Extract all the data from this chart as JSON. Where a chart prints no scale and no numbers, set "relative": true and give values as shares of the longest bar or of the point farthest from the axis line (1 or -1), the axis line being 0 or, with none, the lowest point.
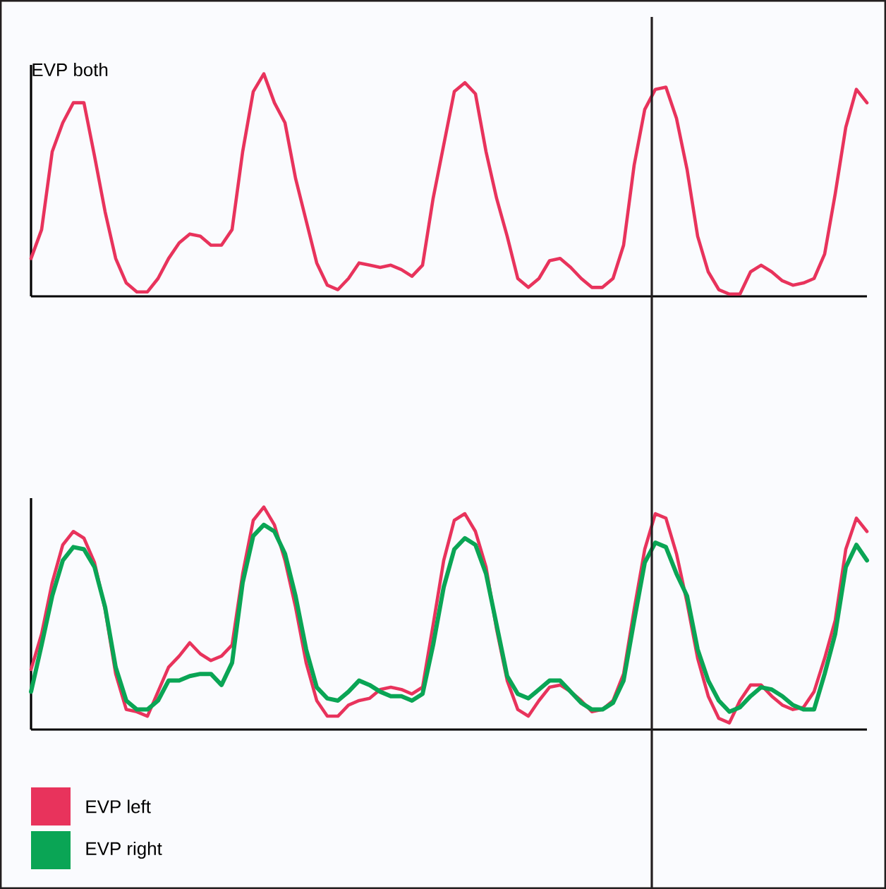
{
  "chart_data": [
    {
      "type": "line",
      "title": "EVP both",
      "relative": true,
      "categories": [
        null,
        null,
        null,
        null,
        null,
        null,
        null,
        null,
        null,
        null,
        null,
        null,
        null,
        null,
        null,
        null,
        null,
        null,
        null,
        null,
        null,
        null,
        null,
        null,
        null,
        null,
        null,
        null,
        null,
        null,
        null,
        null,
        null,
        null,
        null,
        null,
        null,
        null,
        null,
        null,
        null,
        null,
        null,
        null,
        null,
        null,
        null,
        null,
        null,
        null,
        null,
        null,
        null,
        null,
        null,
        null,
        null,
        null,
        null,
        null,
        null,
        null,
        null,
        null,
        null,
        null,
        null,
        null,
        null,
        null,
        null,
        null,
        null,
        null,
        null,
        null,
        null,
        null,
        null,
        null
      ],
      "series": [
        {
          "color": "#e8335c",
          "values": [
            0.17,
            0.3,
            0.65,
            0.78,
            0.87,
            0.87,
            0.63,
            0.38,
            0.17,
            0.06,
            0.02,
            0.02,
            0.08,
            0.17,
            0.24,
            0.28,
            0.27,
            0.23,
            0.23,
            0.3,
            0.65,
            0.92,
            1.0,
            0.87,
            0.78,
            0.53,
            0.34,
            0.15,
            0.05,
            0.03,
            0.08,
            0.15,
            0.14,
            0.13,
            0.14,
            0.12,
            0.09,
            0.14,
            0.44,
            0.68,
            0.92,
            0.96,
            0.91,
            0.65,
            0.44,
            0.27,
            0.08,
            0.04,
            0.08,
            0.16,
            0.17,
            0.13,
            0.08,
            0.04,
            0.04,
            0.08,
            0.23,
            0.59,
            0.84,
            0.93,
            0.94,
            0.8,
            0.57,
            0.27,
            0.11,
            0.03,
            0.01,
            0.01,
            0.11,
            0.14,
            0.11,
            0.07,
            0.05,
            0.06,
            0.08,
            0.19,
            0.46,
            0.76,
            0.93,
            0.87
          ]
        }
      ]
    },
    {
      "type": "line",
      "relative": true,
      "legend": "bottom left",
      "categories": [
        null,
        null,
        null,
        null,
        null,
        null,
        null,
        null,
        null,
        null,
        null,
        null,
        null,
        null,
        null,
        null,
        null,
        null,
        null,
        null,
        null,
        null,
        null,
        null,
        null,
        null,
        null,
        null,
        null,
        null,
        null,
        null,
        null,
        null,
        null,
        null,
        null,
        null,
        null,
        null,
        null,
        null,
        null,
        null,
        null,
        null,
        null,
        null,
        null,
        null,
        null,
        null,
        null,
        null,
        null,
        null,
        null,
        null,
        null,
        null,
        null,
        null,
        null,
        null,
        null,
        null,
        null,
        null,
        null,
        null,
        null,
        null,
        null,
        null,
        null,
        null,
        null,
        null,
        null,
        null
      ],
      "series": [
        {
          "name": "EVP left",
          "color": "#e8335c",
          "values": [
            0.27,
            0.43,
            0.66,
            0.83,
            0.89,
            0.86,
            0.75,
            0.54,
            0.25,
            0.09,
            0.08,
            0.06,
            0.17,
            0.28,
            0.33,
            0.39,
            0.34,
            0.31,
            0.33,
            0.38,
            0.7,
            0.94,
            1.0,
            0.92,
            0.76,
            0.55,
            0.3,
            0.13,
            0.06,
            0.06,
            0.11,
            0.13,
            0.14,
            0.18,
            0.19,
            0.18,
            0.16,
            0.19,
            0.47,
            0.76,
            0.94,
            0.97,
            0.89,
            0.73,
            0.45,
            0.22,
            0.09,
            0.06,
            0.13,
            0.19,
            0.2,
            0.17,
            0.13,
            0.08,
            0.09,
            0.13,
            0.25,
            0.54,
            0.81,
            0.97,
            0.95,
            0.79,
            0.57,
            0.32,
            0.15,
            0.05,
            0.03,
            0.13,
            0.2,
            0.2,
            0.15,
            0.11,
            0.09,
            0.1,
            0.17,
            0.32,
            0.49,
            0.81,
            0.95,
            0.89
          ]
        },
        {
          "name": "EVP right",
          "color": "#0aa555",
          "values": [
            0.17,
            0.38,
            0.6,
            0.76,
            0.82,
            0.81,
            0.73,
            0.55,
            0.28,
            0.13,
            0.09,
            0.09,
            0.13,
            0.22,
            0.22,
            0.24,
            0.25,
            0.25,
            0.2,
            0.3,
            0.66,
            0.87,
            0.92,
            0.89,
            0.79,
            0.6,
            0.36,
            0.19,
            0.14,
            0.13,
            0.17,
            0.22,
            0.2,
            0.17,
            0.15,
            0.15,
            0.13,
            0.16,
            0.38,
            0.64,
            0.81,
            0.86,
            0.83,
            0.7,
            0.47,
            0.24,
            0.16,
            0.14,
            0.18,
            0.22,
            0.22,
            0.17,
            0.12,
            0.09,
            0.09,
            0.12,
            0.22,
            0.49,
            0.75,
            0.84,
            0.82,
            0.7,
            0.6,
            0.36,
            0.22,
            0.13,
            0.08,
            0.1,
            0.15,
            0.19,
            0.18,
            0.15,
            0.11,
            0.09,
            0.09,
            0.25,
            0.43,
            0.73,
            0.83,
            0.76
          ]
        }
      ]
    }
  ]
}
